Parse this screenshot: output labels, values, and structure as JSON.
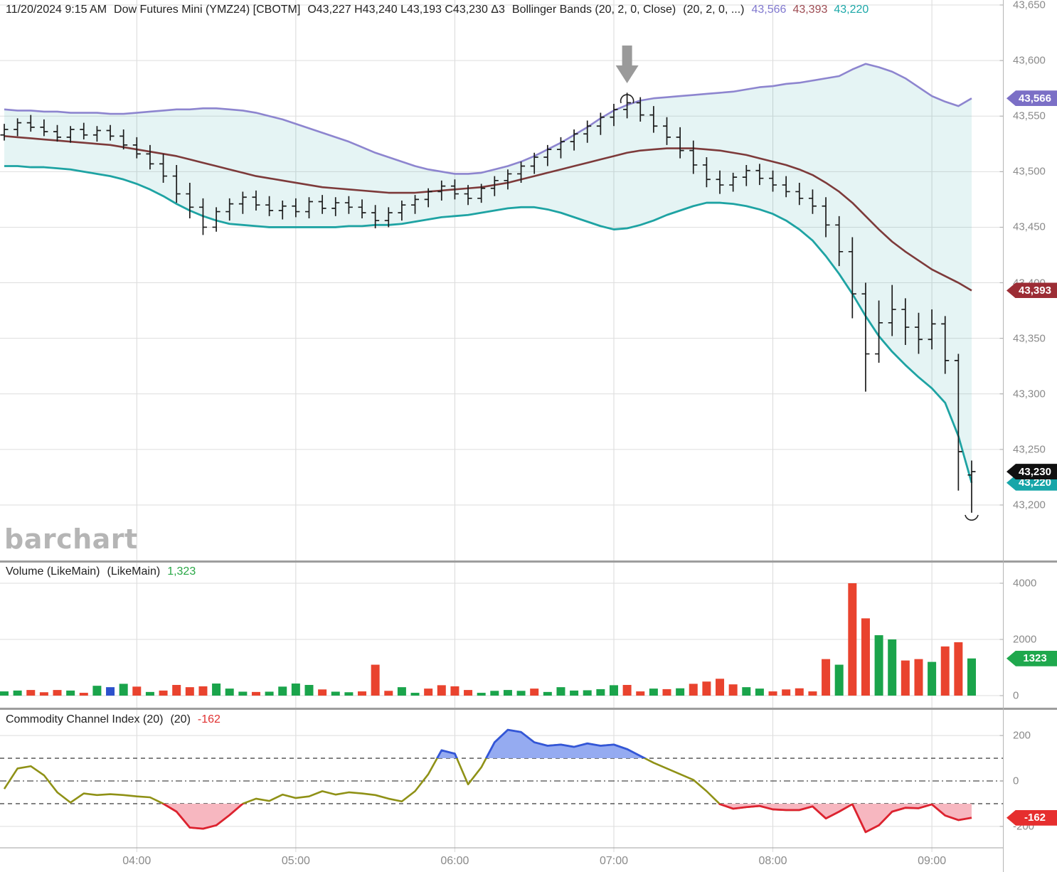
{
  "header": {
    "datetime": "11/20/2024 9:15 AM",
    "symbol": "Dow Futures Mini (YMZ24) [CBOTM]",
    "ohlc": "O43,227 H43,240 L43,193 C43,230 Δ3",
    "study_name": "Bollinger Bands (20, 2, 0, Close)",
    "study_params": "(20, 2, 0, ...)",
    "study_values": [
      {
        "label": "43,566",
        "color": "#8078cf"
      },
      {
        "label": "43,393",
        "color": "#9d4b52"
      },
      {
        "label": "43,220",
        "color": "#1ba8a8"
      }
    ]
  },
  "watermark": "barchart",
  "volume_panel": {
    "title": "Volume (LikeMain)",
    "title2": "(LikeMain)",
    "value": "1,323",
    "value_color": "#28a745"
  },
  "cci_panel": {
    "title": "Commodity Channel Index (20)",
    "title2": "(20)",
    "value": "-162",
    "value_color": "#e03131"
  },
  "axes": {
    "price": {
      "tick_labels": [
        "43,650",
        "43,600",
        "43,550",
        "43,500",
        "43,450",
        "43,400",
        "43,350",
        "43,300",
        "43,250",
        "43,200"
      ],
      "tick_values": [
        43650,
        43600,
        43550,
        43500,
        43450,
        43400,
        43350,
        43300,
        43250,
        43200
      ]
    },
    "volume": {
      "tick_labels": [
        "4000",
        "2000",
        "0"
      ],
      "tick_values": [
        4000,
        2000,
        0
      ]
    },
    "cci": {
      "tick_labels": [
        "200",
        "0",
        "-200"
      ],
      "tick_values": [
        200,
        0,
        -200
      ]
    },
    "time": {
      "tick_labels": [
        "04:00",
        "05:00",
        "06:00",
        "07:00",
        "08:00",
        "09:00"
      ],
      "bar_index": [
        10,
        22,
        34,
        46,
        58,
        70
      ]
    }
  },
  "badges": [
    {
      "panel": "price",
      "label": "43,566",
      "value": 43566,
      "bg": "#7b6fc6",
      "name": "upper-band-badge"
    },
    {
      "panel": "price",
      "label": "43,393",
      "value": 43393,
      "bg": "#9c2d35",
      "name": "middle-band-badge"
    },
    {
      "panel": "price",
      "label": "43,220",
      "value": 43220,
      "bg": "#17a6a9",
      "name": "lower-band-badge"
    },
    {
      "panel": "price",
      "label": "43,230",
      "value": 43230,
      "bg": "#101010",
      "name": "last-price-badge"
    },
    {
      "panel": "volume",
      "label": "1323",
      "value": 1323,
      "bg": "#1fa84d",
      "name": "last-volume-badge"
    },
    {
      "panel": "cci",
      "label": "-162",
      "value": -162,
      "bg": "#e62e2e",
      "name": "last-cci-badge"
    }
  ],
  "annotations": {
    "down_arrow": {
      "bar": 47,
      "color": "#9a9a9a"
    },
    "arc_over_high": {
      "bar": 47,
      "color": "#222222"
    },
    "arc_under_low": {
      "bar": 73,
      "color": "#222222"
    }
  },
  "chart_data": [
    {
      "type": "ohlc",
      "name": "price",
      "title": "Dow Futures Mini (YMZ24)",
      "time_start": "03:10",
      "interval_min": 5,
      "bars": 74,
      "ylim": [
        43200,
        43650
      ],
      "last_close": 43230,
      "candle_color": "#1c1c1c",
      "candles": [
        [
          43533,
          43543,
          43528,
          43538
        ],
        [
          43538,
          43548,
          43532,
          43544
        ],
        [
          43544,
          43551,
          43536,
          43540
        ],
        [
          43540,
          43547,
          43532,
          43536
        ],
        [
          43536,
          43542,
          43527,
          43531
        ],
        [
          43531,
          43541,
          43526,
          43538
        ],
        [
          43538,
          43544,
          43529,
          43533
        ],
        [
          43533,
          43541,
          43527,
          43537
        ],
        [
          43537,
          43542,
          43528,
          43532
        ],
        [
          43532,
          43538,
          43520,
          43524
        ],
        [
          43524,
          43531,
          43512,
          43516
        ],
        [
          43516,
          43524,
          43502,
          43507
        ],
        [
          43507,
          43516,
          43490,
          43496
        ],
        [
          43496,
          43506,
          43472,
          43480
        ],
        [
          43480,
          43490,
          43458,
          43468
        ],
        [
          43468,
          43476,
          43443,
          43450
        ],
        [
          43450,
          43468,
          43446,
          43464
        ],
        [
          43464,
          43476,
          43456,
          43471
        ],
        [
          43471,
          43482,
          43462,
          43477
        ],
        [
          43477,
          43483,
          43465,
          43470
        ],
        [
          43470,
          43478,
          43460,
          43465
        ],
        [
          43465,
          43474,
          43457,
          43469
        ],
        [
          43469,
          43476,
          43459,
          43464
        ],
        [
          43464,
          43477,
          43458,
          43473
        ],
        [
          43473,
          43479,
          43462,
          43467
        ],
        [
          43467,
          43477,
          43460,
          43472
        ],
        [
          43472,
          43478,
          43462,
          43468
        ],
        [
          43468,
          43475,
          43458,
          43463
        ],
        [
          43463,
          43470,
          43449,
          43456
        ],
        [
          43456,
          43468,
          43450,
          43463
        ],
        [
          43463,
          43474,
          43456,
          43470
        ],
        [
          43470,
          43479,
          43462,
          43475
        ],
        [
          43475,
          43485,
          43468,
          43482
        ],
        [
          43482,
          43492,
          43474,
          43487
        ],
        [
          43487,
          43493,
          43475,
          43480
        ],
        [
          43480,
          43488,
          43470,
          43476
        ],
        [
          43476,
          43489,
          43472,
          43485
        ],
        [
          43485,
          43496,
          43478,
          43492
        ],
        [
          43492,
          43502,
          43484,
          43498
        ],
        [
          43498,
          43509,
          43490,
          43505
        ],
        [
          43505,
          43517,
          43498,
          43513
        ],
        [
          43513,
          43524,
          43505,
          43520
        ],
        [
          43520,
          43531,
          43512,
          43527
        ],
        [
          43527,
          43538,
          43519,
          43534
        ],
        [
          43534,
          43546,
          43526,
          43541
        ],
        [
          43541,
          43553,
          43533,
          43549
        ],
        [
          43549,
          43561,
          43541,
          43556
        ],
        [
          43556,
          43571,
          43548,
          43562
        ],
        [
          43562,
          43567,
          43545,
          43551
        ],
        [
          43551,
          43559,
          43535,
          43541
        ],
        [
          43541,
          43549,
          43524,
          43531
        ],
        [
          43531,
          43540,
          43512,
          43519
        ],
        [
          43519,
          43528,
          43498,
          43506
        ],
        [
          43506,
          43513,
          43486,
          43493
        ],
        [
          43493,
          43501,
          43480,
          43488
        ],
        [
          43488,
          43499,
          43482,
          43495
        ],
        [
          43495,
          43506,
          43487,
          43501
        ],
        [
          43501,
          43507,
          43488,
          43494
        ],
        [
          43494,
          43501,
          43482,
          43488
        ],
        [
          43488,
          43496,
          43477,
          43482
        ],
        [
          43482,
          43490,
          43470,
          43476
        ],
        [
          43476,
          43484,
          43462,
          43469
        ],
        [
          43469,
          43477,
          43441,
          43452
        ],
        [
          43452,
          43460,
          43415,
          43428
        ],
        [
          43428,
          43441,
          43368,
          43390
        ],
        [
          43390,
          43400,
          43302,
          43336
        ],
        [
          43336,
          43384,
          43328,
          43364
        ],
        [
          43364,
          43398,
          43352,
          43376
        ],
        [
          43376,
          43386,
          43344,
          43360
        ],
        [
          43360,
          43373,
          43336,
          43349
        ],
        [
          43349,
          43376,
          43340,
          43363
        ],
        [
          43363,
          43370,
          43318,
          43330
        ],
        [
          43330,
          43336,
          43213,
          43248
        ],
        [
          43227,
          43240,
          43193,
          43230
        ]
      ],
      "bollinger": {
        "params": "(20, 2, 0, Close)",
        "colors": {
          "upper": "#8d85cf",
          "middle": "#7d3a3a",
          "lower": "#1ea3a3",
          "fill": "#2aa7a7"
        },
        "upper": [
          43556,
          43555,
          43555,
          43554,
          43554,
          43553,
          43553,
          43553,
          43552,
          43552,
          43553,
          43554,
          43555,
          43556,
          43556,
          43557,
          43557,
          43556,
          43555,
          43553,
          43550,
          43547,
          43543,
          43539,
          43535,
          43531,
          43527,
          43522,
          43517,
          43513,
          43509,
          43505,
          43502,
          43500,
          43498,
          43498,
          43499,
          43502,
          43505,
          43509,
          43514,
          43520,
          43526,
          43533,
          43540,
          43548,
          43555,
          43560,
          43564,
          43566,
          43567,
          43568,
          43569,
          43570,
          43571,
          43572,
          43574,
          43576,
          43577,
          43579,
          43580,
          43582,
          43584,
          43586,
          43592,
          43597,
          43594,
          43590,
          43584,
          43576,
          43568,
          43563,
          43559,
          43566
        ],
        "middle": [
          43532,
          43531,
          43530,
          43529,
          43528,
          43527,
          43526,
          43525,
          43524,
          43522,
          43520,
          43518,
          43516,
          43514,
          43511,
          43508,
          43505,
          43502,
          43499,
          43496,
          43494,
          43492,
          43490,
          43488,
          43486,
          43485,
          43484,
          43483,
          43482,
          43481,
          43481,
          43481,
          43482,
          43483,
          43484,
          43485,
          43486,
          43488,
          43490,
          43493,
          43496,
          43499,
          43502,
          43505,
          43508,
          43511,
          43514,
          43517,
          43519,
          43520,
          43521,
          43521,
          43521,
          43520,
          43519,
          43517,
          43515,
          43512,
          43509,
          43506,
          43502,
          43497,
          43490,
          43482,
          43472,
          43460,
          43448,
          43437,
          43428,
          43420,
          43412,
          43406,
          43400,
          43393
        ],
        "lower": [
          43505,
          43505,
          43504,
          43504,
          43503,
          43502,
          43500,
          43498,
          43496,
          43493,
          43489,
          43484,
          43478,
          43471,
          43465,
          43460,
          43456,
          43453,
          43452,
          43451,
          43450,
          43450,
          43450,
          43450,
          43450,
          43450,
          43451,
          43451,
          43452,
          43452,
          43453,
          43455,
          43457,
          43459,
          43460,
          43461,
          43463,
          43465,
          43467,
          43468,
          43468,
          43466,
          43463,
          43459,
          43455,
          43451,
          43448,
          43449,
          43452,
          43456,
          43461,
          43465,
          43469,
          43472,
          43472,
          43471,
          43469,
          43466,
          43462,
          43456,
          43448,
          43438,
          43424,
          43408,
          43390,
          43370,
          43352,
          43338,
          43326,
          43315,
          43305,
          43292,
          43262,
          43220
        ]
      }
    },
    {
      "type": "bar",
      "name": "volume",
      "ylim": [
        0,
        4000
      ],
      "last": 1323,
      "palette": {
        "g": "#1aa44b",
        "r": "#e9432e",
        "b": "#2c51cc"
      },
      "values": [
        150,
        180,
        200,
        120,
        200,
        180,
        100,
        350,
        300,
        420,
        320,
        130,
        180,
        380,
        300,
        330,
        430,
        250,
        140,
        130,
        140,
        320,
        430,
        380,
        220,
        140,
        120,
        150,
        1100,
        170,
        300,
        100,
        250,
        370,
        330,
        200,
        100,
        170,
        200,
        170,
        250,
        130,
        300,
        180,
        190,
        230,
        370,
        380,
        150,
        250,
        230,
        260,
        420,
        500,
        600,
        400,
        300,
        250,
        150,
        220,
        260,
        150,
        1300,
        1100,
        4000,
        2750,
        2150,
        2000,
        1250,
        1300,
        1200,
        1750,
        1900,
        1323
      ],
      "colors": [
        "g",
        "g",
        "r",
        "r",
        "r",
        "g",
        "r",
        "g",
        "b",
        "g",
        "r",
        "g",
        "r",
        "r",
        "r",
        "r",
        "g",
        "g",
        "g",
        "r",
        "g",
        "g",
        "g",
        "g",
        "r",
        "g",
        "g",
        "r",
        "r",
        "r",
        "g",
        "g",
        "r",
        "r",
        "r",
        "r",
        "g",
        "g",
        "g",
        "g",
        "r",
        "g",
        "g",
        "g",
        "g",
        "g",
        "g",
        "r",
        "r",
        "g",
        "r",
        "g",
        "r",
        "r",
        "r",
        "r",
        "g",
        "g",
        "r",
        "r",
        "r",
        "r",
        "r",
        "g",
        "r",
        "r",
        "g",
        "g",
        "r",
        "r",
        "g",
        "r",
        "r",
        "g"
      ]
    },
    {
      "type": "line",
      "name": "cci",
      "ylim": [
        -200,
        200
      ],
      "thresholds": [
        100,
        -100
      ],
      "last": -162,
      "colors": {
        "line": "#8f9116",
        "above": "#3356d8",
        "above_fill": "#8fa6f0",
        "below": "#dd2230",
        "below_fill": "#f7b3bd"
      },
      "values": [
        -35,
        55,
        65,
        25,
        -50,
        -95,
        -55,
        -62,
        -58,
        -62,
        -68,
        -72,
        -100,
        -135,
        -205,
        -210,
        -195,
        -150,
        -100,
        -78,
        -88,
        -60,
        -75,
        -68,
        -45,
        -60,
        -50,
        -55,
        -62,
        -78,
        -90,
        -45,
        30,
        135,
        120,
        -15,
        60,
        170,
        225,
        215,
        170,
        155,
        160,
        150,
        165,
        155,
        160,
        140,
        110,
        80,
        55,
        30,
        5,
        -45,
        -102,
        -122,
        -115,
        -110,
        -125,
        -128,
        -128,
        -112,
        -165,
        -135,
        -102,
        -225,
        -195,
        -135,
        -118,
        -120,
        -103,
        -152,
        -172,
        -162
      ]
    }
  ]
}
